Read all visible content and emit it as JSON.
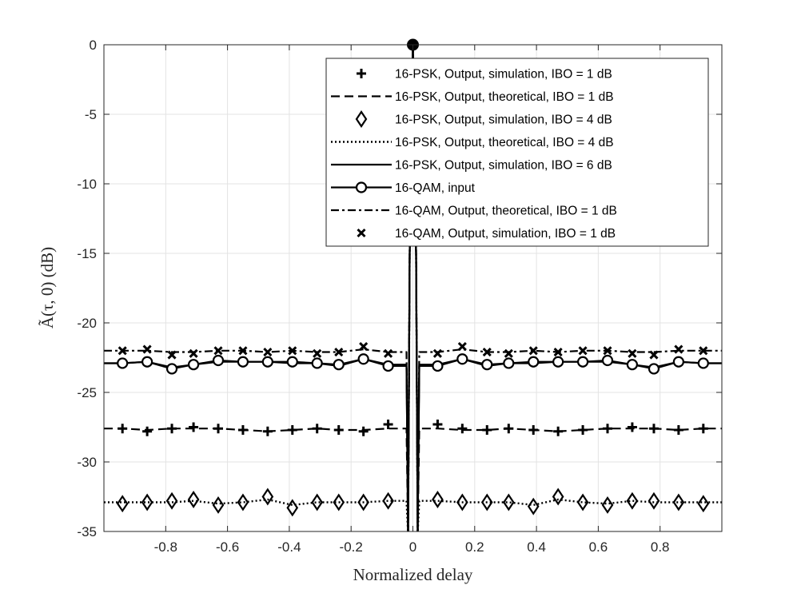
{
  "chart_data": {
    "type": "line",
    "xlabel": "Normalized delay",
    "ylabel": "Ã(τ, 0) (dB)",
    "xlim": [
      -1,
      1
    ],
    "ylim": [
      -35,
      0
    ],
    "xticks": [
      -0.8,
      -0.6,
      -0.4,
      -0.2,
      0,
      0.2,
      0.4,
      0.6,
      0.8
    ],
    "xtick_labels": [
      "-0.8",
      "-0.6",
      "-0.4",
      "-0.2",
      "0",
      "0.2",
      "0.4",
      "0.6",
      "0.8"
    ],
    "yticks": [
      0,
      -5,
      -10,
      -15,
      -20,
      -25,
      -30,
      -35
    ],
    "ytick_labels": [
      "0",
      "-5",
      "-10",
      "-15",
      "-20",
      "-25",
      "-30",
      "-35"
    ],
    "grid": true,
    "legend_position": "top-right",
    "marker_x": [
      -0.94,
      -0.86,
      -0.78,
      -0.71,
      -0.63,
      -0.55,
      -0.47,
      -0.39,
      -0.31,
      -0.24,
      -0.16,
      -0.08,
      0.08,
      0.16,
      0.24,
      0.31,
      0.39,
      0.47,
      0.55,
      0.63,
      0.71,
      0.78,
      0.86,
      0.94
    ],
    "series": [
      {
        "name": "16-PSK, Output, simulation, IBO = 1 dB",
        "style": "marker-plus",
        "y": [
          -27.6,
          -27.8,
          -27.6,
          -27.5,
          -27.6,
          -27.7,
          -27.8,
          -27.7,
          -27.6,
          -27.7,
          -27.8,
          -27.3,
          -27.3,
          -27.6,
          -27.7,
          -27.6,
          -27.7,
          -27.8,
          -27.7,
          -27.6,
          -27.5,
          -27.6,
          -27.7,
          -27.6
        ]
      },
      {
        "name": "16-PSK, Output, theoretical, IBO = 1 dB",
        "style": "dashed",
        "y": [
          -27.6,
          -27.7,
          -27.6,
          -27.6,
          -27.6,
          -27.7,
          -27.8,
          -27.7,
          -27.6,
          -27.7,
          -27.7,
          -27.6,
          -27.6,
          -27.7,
          -27.7,
          -27.6,
          -27.7,
          -27.8,
          -27.7,
          -27.6,
          -27.6,
          -27.6,
          -27.7,
          -27.6
        ]
      },
      {
        "name": "16-PSK, Output, simulation, IBO =  4 dB",
        "style": "marker-diamond",
        "y": [
          -33.0,
          -32.9,
          -32.8,
          -32.7,
          -33.1,
          -32.9,
          -32.5,
          -33.3,
          -32.9,
          -32.9,
          -32.9,
          -32.8,
          -32.7,
          -32.9,
          -32.9,
          -32.9,
          -33.2,
          -32.5,
          -32.9,
          -33.1,
          -32.8,
          -32.8,
          -32.9,
          -33.0
        ]
      },
      {
        "name": "16-PSK, Output, theoretical, IBO = 4 dB",
        "style": "dotted",
        "y": [
          -32.9,
          -32.9,
          -32.9,
          -32.8,
          -33.0,
          -32.9,
          -32.7,
          -33.1,
          -32.9,
          -32.9,
          -32.9,
          -32.8,
          -32.8,
          -32.9,
          -32.9,
          -32.9,
          -33.1,
          -32.7,
          -32.9,
          -33.0,
          -32.8,
          -32.9,
          -32.9,
          -32.9
        ]
      },
      {
        "name": "16-PSK, Output, simulation, IBO =  6 dB",
        "style": "solid",
        "y": [
          -22.9,
          -22.8,
          -23.2,
          -23.0,
          -22.8,
          -22.8,
          -22.8,
          -22.9,
          -22.9,
          -23.1,
          -22.6,
          -23.0,
          -23.0,
          -22.6,
          -23.1,
          -22.9,
          -22.9,
          -22.8,
          -22.8,
          -22.8,
          -23.0,
          -23.2,
          -22.8,
          -22.9
        ]
      },
      {
        "name": "16-QAM, input",
        "style": "solid-circle",
        "y": [
          -22.9,
          -22.8,
          -23.3,
          -23.0,
          -22.7,
          -22.8,
          -22.8,
          -22.8,
          -22.9,
          -23.0,
          -22.6,
          -23.1,
          -23.1,
          -22.6,
          -23.0,
          -22.9,
          -22.8,
          -22.8,
          -22.8,
          -22.7,
          -23.0,
          -23.3,
          -22.8,
          -22.9
        ]
      },
      {
        "name": "16-QAM, Output, theoretical, IBO = 1 dB",
        "style": "dashdot",
        "y": [
          -22.0,
          -22.0,
          -22.1,
          -22.1,
          -22.0,
          -22.0,
          -22.1,
          -22.0,
          -22.1,
          -22.1,
          -21.9,
          -22.1,
          -22.1,
          -21.9,
          -22.1,
          -22.1,
          -22.0,
          -22.1,
          -22.0,
          -22.0,
          -22.1,
          -22.1,
          -22.0,
          -22.0
        ]
      },
      {
        "name": "16-QAM, Output, simulation, IBO = 1 dB",
        "style": "marker-x",
        "y": [
          -22.0,
          -21.9,
          -22.3,
          -22.2,
          -22.0,
          -22.0,
          -22.1,
          -22.0,
          -22.2,
          -22.1,
          -21.7,
          -22.2,
          -22.2,
          -21.7,
          -22.1,
          -22.2,
          -22.0,
          -22.1,
          -22.0,
          -22.0,
          -22.2,
          -22.3,
          -21.9,
          -22.0
        ]
      }
    ]
  }
}
